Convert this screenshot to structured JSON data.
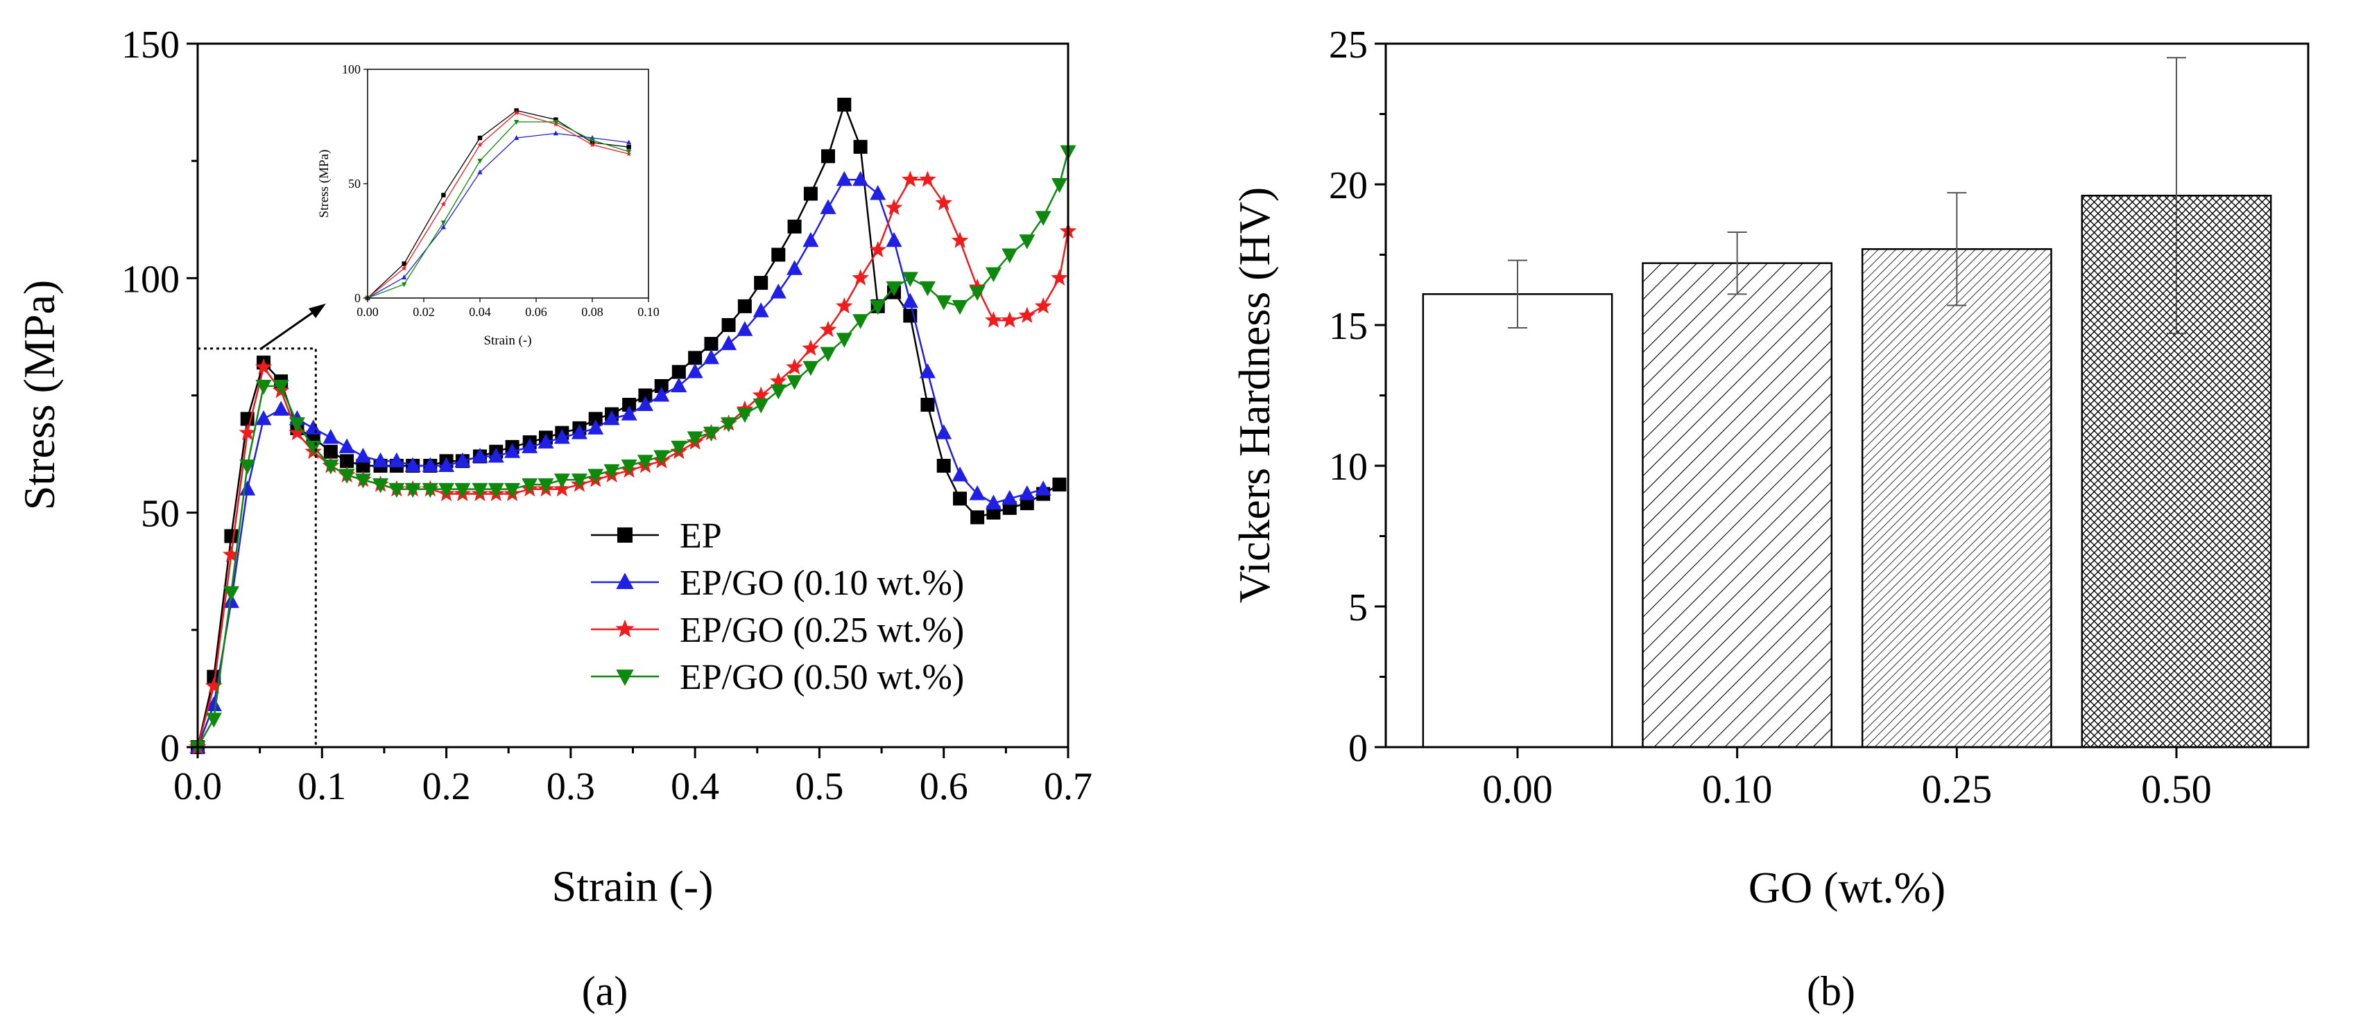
{
  "chart_data": [
    {
      "type": "line",
      "panel_label": "(a)",
      "xlabel": "Strain (-)",
      "ylabel": "Stress (MPa)",
      "xlim": [
        0,
        0.7
      ],
      "ylim": [
        0,
        150
      ],
      "xticks": [
        "0.0",
        "0.1",
        "0.2",
        "0.3",
        "0.4",
        "0.5",
        "0.6",
        "0.7"
      ],
      "yticks": [
        "0",
        "50",
        "100",
        "150"
      ],
      "legend": "center-right",
      "series": [
        {
          "name": "EP",
          "color": "#000000",
          "marker": "square",
          "x": [
            0.0,
            0.013,
            0.027,
            0.04,
            0.053,
            0.067,
            0.08,
            0.093,
            0.107,
            0.12,
            0.133,
            0.147,
            0.16,
            0.173,
            0.187,
            0.2,
            0.213,
            0.227,
            0.24,
            0.253,
            0.267,
            0.28,
            0.293,
            0.307,
            0.32,
            0.333,
            0.347,
            0.36,
            0.373,
            0.387,
            0.4,
            0.413,
            0.427,
            0.44,
            0.453,
            0.467,
            0.48,
            0.493,
            0.507,
            0.52,
            0.533,
            0.547,
            0.56,
            0.573,
            0.587,
            0.6,
            0.613,
            0.627,
            0.64,
            0.653,
            0.667,
            0.68,
            0.693
          ],
          "y": [
            0,
            15,
            45,
            70,
            82,
            78,
            68,
            66,
            63,
            61,
            60,
            60,
            60,
            60,
            60,
            61,
            61,
            62,
            63,
            64,
            65,
            66,
            67,
            68,
            70,
            71,
            73,
            75,
            77,
            80,
            83,
            86,
            90,
            94,
            99,
            105,
            111,
            118,
            126,
            137,
            128,
            94,
            97,
            92,
            73,
            60,
            53,
            49,
            50,
            51,
            52,
            54,
            56
          ]
        },
        {
          "name": "EP/GO (0.10 wt.%)",
          "color": "#1f1fe6",
          "marker": "triangle-up",
          "x": [
            0.0,
            0.013,
            0.027,
            0.04,
            0.053,
            0.067,
            0.08,
            0.093,
            0.107,
            0.12,
            0.133,
            0.147,
            0.16,
            0.173,
            0.187,
            0.2,
            0.213,
            0.227,
            0.24,
            0.253,
            0.267,
            0.28,
            0.293,
            0.307,
            0.32,
            0.333,
            0.347,
            0.36,
            0.373,
            0.387,
            0.4,
            0.413,
            0.427,
            0.44,
            0.453,
            0.467,
            0.48,
            0.493,
            0.507,
            0.52,
            0.533,
            0.547,
            0.56,
            0.573,
            0.587,
            0.6,
            0.613,
            0.627,
            0.64,
            0.653,
            0.667,
            0.68
          ],
          "y": [
            0,
            9,
            31,
            55,
            70,
            72,
            70,
            68,
            66,
            64,
            62,
            61,
            61,
            60,
            60,
            60,
            61,
            62,
            62,
            63,
            64,
            65,
            66,
            67,
            68,
            70,
            71,
            73,
            75,
            77,
            80,
            83,
            86,
            89,
            93,
            97,
            102,
            108,
            115,
            121,
            121,
            118,
            108,
            95,
            80,
            67,
            58,
            54,
            52,
            53,
            54,
            55
          ]
        },
        {
          "name": "EP/GO (0.25 wt.%)",
          "color": "#ee1c1c",
          "marker": "star",
          "x": [
            0.0,
            0.013,
            0.027,
            0.04,
            0.053,
            0.067,
            0.08,
            0.093,
            0.107,
            0.12,
            0.133,
            0.147,
            0.16,
            0.173,
            0.187,
            0.2,
            0.213,
            0.227,
            0.24,
            0.253,
            0.267,
            0.28,
            0.293,
            0.307,
            0.32,
            0.333,
            0.347,
            0.36,
            0.373,
            0.387,
            0.4,
            0.413,
            0.427,
            0.44,
            0.453,
            0.467,
            0.48,
            0.493,
            0.507,
            0.52,
            0.533,
            0.547,
            0.56,
            0.573,
            0.587,
            0.6,
            0.613,
            0.627,
            0.64,
            0.653,
            0.667,
            0.68,
            0.693,
            0.7
          ],
          "y": [
            0,
            13,
            41,
            67,
            81,
            76,
            67,
            63,
            60,
            58,
            57,
            56,
            55,
            55,
            55,
            54,
            54,
            54,
            54,
            54,
            55,
            55,
            55,
            56,
            57,
            58,
            59,
            60,
            61,
            63,
            65,
            67,
            69,
            72,
            75,
            78,
            81,
            85,
            89,
            94,
            100,
            106,
            115,
            121,
            121,
            116,
            108,
            98,
            91,
            91,
            92,
            94,
            100,
            110
          ]
        },
        {
          "name": "EP/GO (0.50 wt.%)",
          "color": "#0d8a0d",
          "marker": "triangle-down",
          "x": [
            0.0,
            0.013,
            0.027,
            0.04,
            0.053,
            0.067,
            0.08,
            0.093,
            0.107,
            0.12,
            0.133,
            0.147,
            0.16,
            0.173,
            0.187,
            0.2,
            0.213,
            0.227,
            0.24,
            0.253,
            0.267,
            0.28,
            0.293,
            0.307,
            0.32,
            0.333,
            0.347,
            0.36,
            0.373,
            0.387,
            0.4,
            0.413,
            0.427,
            0.44,
            0.453,
            0.467,
            0.48,
            0.493,
            0.507,
            0.52,
            0.533,
            0.547,
            0.56,
            0.573,
            0.587,
            0.6,
            0.613,
            0.627,
            0.64,
            0.653,
            0.667,
            0.68,
            0.693,
            0.7
          ],
          "y": [
            0,
            6,
            33,
            60,
            77,
            77,
            69,
            64,
            60,
            58,
            57,
            56,
            55,
            55,
            55,
            55,
            55,
            55,
            55,
            55,
            56,
            56,
            57,
            57,
            58,
            59,
            60,
            61,
            62,
            64,
            66,
            67,
            69,
            71,
            73,
            76,
            78,
            81,
            84,
            87,
            91,
            94,
            98,
            100,
            98,
            95,
            94,
            97,
            101,
            105,
            108,
            113,
            120,
            127
          ]
        }
      ],
      "inset": {
        "xlabel": "Strain (-)",
        "ylabel": "Stress (MPa)",
        "xlim": [
          0,
          0.1
        ],
        "ylim": [
          0,
          100
        ],
        "xticks": [
          "0.00",
          "0.02",
          "0.04",
          "0.06",
          "0.08",
          "0.10"
        ],
        "yticks": [
          "0",
          "50",
          "100"
        ],
        "zoom_box": {
          "x": [
            0,
            0.095
          ],
          "y": [
            0,
            85
          ]
        }
      }
    },
    {
      "type": "bar",
      "panel_label": "(b)",
      "xlabel": "GO (wt.%)",
      "ylabel": "Vickers Hardness (HV)",
      "categories": [
        "0.00",
        "0.10",
        "0.25",
        "0.50"
      ],
      "values": [
        16.1,
        17.2,
        17.7,
        19.6
      ],
      "errors": [
        1.2,
        1.1,
        2.0,
        4.9
      ],
      "ylim": [
        0,
        25
      ],
      "yticks": [
        "0",
        "5",
        "10",
        "15",
        "20",
        "25"
      ],
      "fills": [
        "none",
        "diagonal",
        "dense-diagonal",
        "crosshatch"
      ]
    }
  ]
}
